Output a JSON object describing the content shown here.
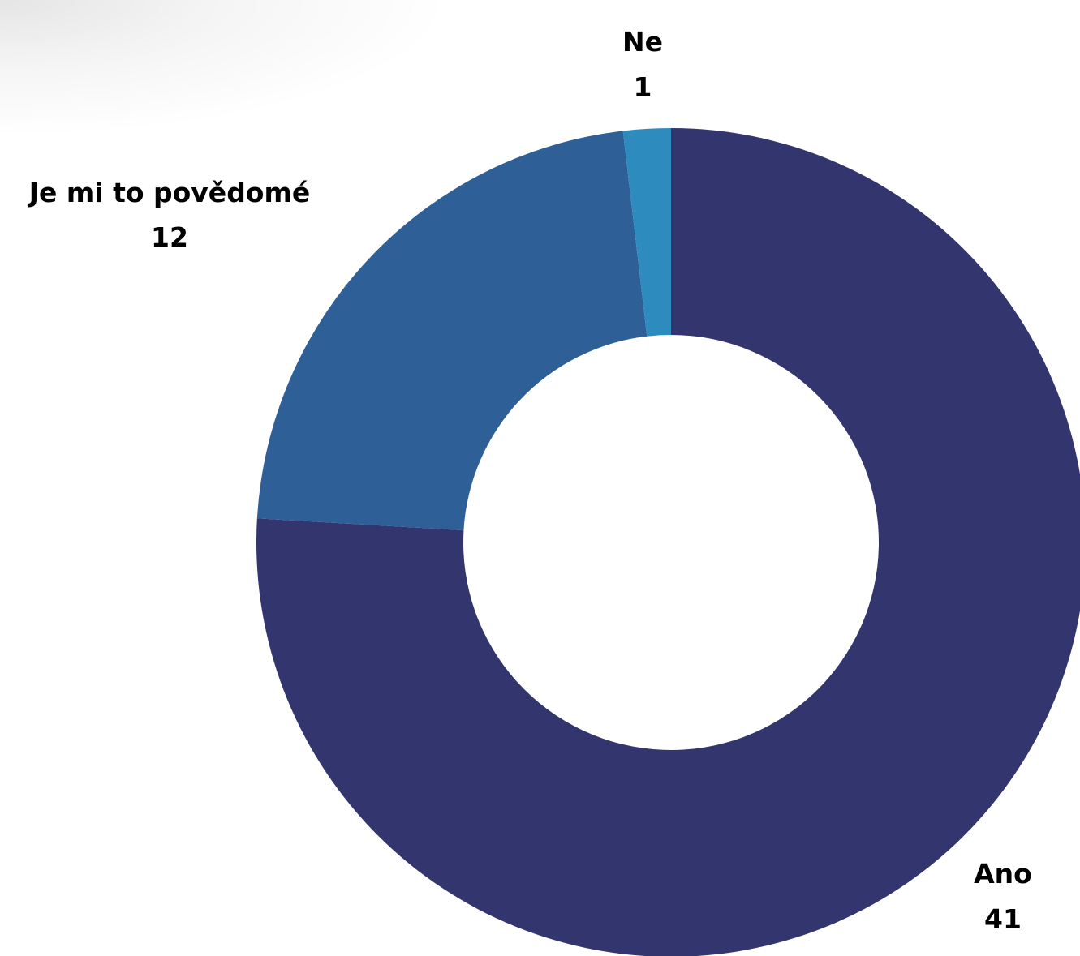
{
  "chart_data": {
    "type": "pie",
    "variant": "donut",
    "title": "",
    "start_angle_deg": 0,
    "direction": "clockwise",
    "slices": [
      {
        "label": "Ano",
        "value": 41,
        "color": "#33356e"
      },
      {
        "label": "Je mi to povědomé",
        "value": 12,
        "color": "#2f5f97"
      },
      {
        "label": "Ne",
        "value": 1,
        "color": "#2e8bbd"
      }
    ]
  }
}
